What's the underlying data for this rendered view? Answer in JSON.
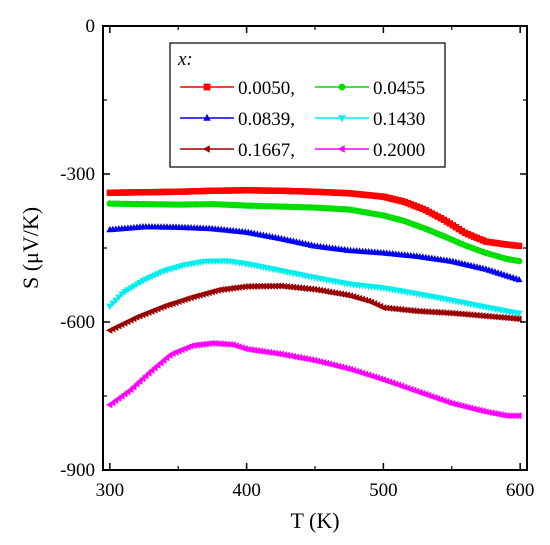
{
  "chart_data": {
    "type": "scatter",
    "xlabel": "T  (K)",
    "ylabel": "S  (μV/K)",
    "xlim": [
      295,
      605
    ],
    "ylim": [
      -900,
      0
    ],
    "xticks": [
      300,
      400,
      500,
      600
    ],
    "yticks": [
      0,
      -300,
      -600,
      -900
    ],
    "grid": false,
    "legend": {
      "title": "x:",
      "placement": "top-right",
      "columns": 2
    },
    "series": [
      {
        "name": "0.0050,",
        "color": "#ff0000",
        "marker": "square",
        "x": [
          300,
          325,
          350,
          375,
          400,
          425,
          450,
          475,
          500,
          515,
          530,
          545,
          560,
          575,
          590,
          600
        ],
        "y": [
          -338,
          -337,
          -336,
          -334,
          -333,
          -334,
          -336,
          -339,
          -346,
          -356,
          -372,
          -394,
          -420,
          -437,
          -443,
          -446
        ]
      },
      {
        "name": "0.0455",
        "color": "#00dd00",
        "marker": "circle",
        "x": [
          300,
          325,
          350,
          375,
          400,
          425,
          450,
          475,
          500,
          515,
          530,
          545,
          560,
          575,
          590,
          600
        ],
        "y": [
          -360,
          -361,
          -362,
          -361,
          -364,
          -366,
          -368,
          -372,
          -384,
          -395,
          -410,
          -427,
          -445,
          -460,
          -472,
          -477
        ]
      },
      {
        "name": "0.0839,",
        "color": "#0000ee",
        "marker": "triangle-up",
        "x": [
          300,
          325,
          350,
          375,
          400,
          425,
          450,
          475,
          500,
          525,
          550,
          575,
          600
        ],
        "y": [
          -413,
          -407,
          -408,
          -411,
          -418,
          -431,
          -446,
          -455,
          -460,
          -467,
          -477,
          -493,
          -515
        ]
      },
      {
        "name": "0.1430",
        "color": "#00eeee",
        "marker": "triangle-down",
        "x": [
          300,
          310,
          325,
          340,
          355,
          370,
          385,
          400,
          425,
          450,
          475,
          500,
          525,
          550,
          575,
          600
        ],
        "y": [
          -568,
          -540,
          -515,
          -496,
          -484,
          -477,
          -476,
          -482,
          -496,
          -510,
          -523,
          -531,
          -543,
          -556,
          -570,
          -583
        ]
      },
      {
        "name": "0.1667,",
        "color": "#990000",
        "marker": "triangle-left",
        "x": [
          300,
          320,
          340,
          360,
          380,
          400,
          425,
          450,
          475,
          490,
          500,
          525,
          550,
          575,
          600
        ],
        "y": [
          -617,
          -590,
          -568,
          -550,
          -535,
          -528,
          -527,
          -534,
          -546,
          -558,
          -571,
          -578,
          -582,
          -588,
          -594
        ]
      },
      {
        "name": "0.2000",
        "color": "#ff00ff",
        "marker": "triangle-left",
        "x": [
          300,
          315,
          330,
          345,
          360,
          375,
          390,
          400,
          425,
          450,
          475,
          500,
          525,
          550,
          575,
          590,
          600
        ],
        "y": [
          -768,
          -738,
          -700,
          -665,
          -648,
          -643,
          -646,
          -655,
          -665,
          -678,
          -695,
          -717,
          -741,
          -765,
          -782,
          -790,
          -790
        ]
      }
    ]
  }
}
